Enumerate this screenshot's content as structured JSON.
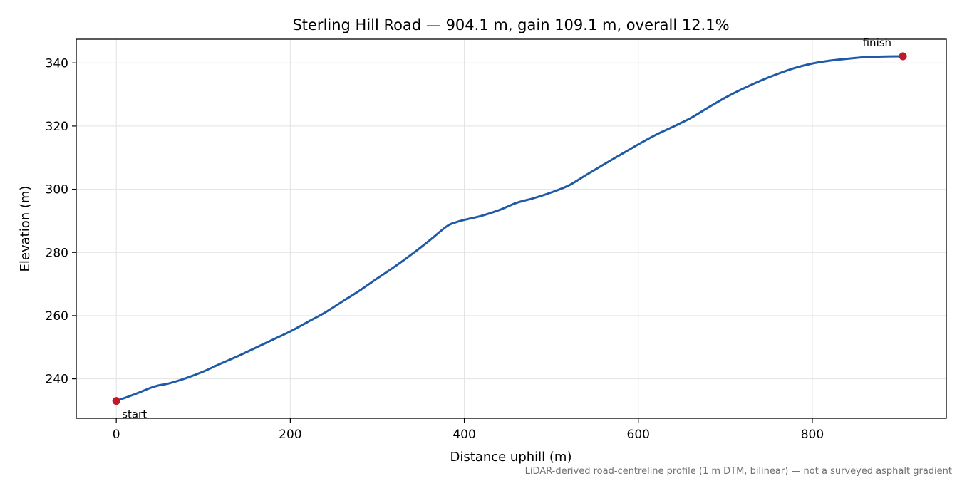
{
  "chart_data": {
    "type": "line",
    "title": "Sterling Hill Road — 904.1 m, gain 109.1 m, overall 12.1%",
    "xlabel": "Distance uphill (m)",
    "ylabel": "Elevation (m)",
    "xlim": [
      -46,
      954
    ],
    "ylim": [
      227.5,
      347.5
    ],
    "xticks": [
      0,
      200,
      400,
      600,
      800
    ],
    "yticks": [
      240,
      260,
      280,
      300,
      320,
      340
    ],
    "grid": true,
    "line_color": "#1f5aa6",
    "marker_color": "#c0192b",
    "series": [
      {
        "x": [
          0,
          20,
          40,
          50,
          60,
          80,
          100,
          120,
          140,
          160,
          180,
          200,
          220,
          240,
          260,
          280,
          300,
          320,
          340,
          360,
          380,
          390,
          400,
          420,
          440,
          460,
          480,
          500,
          520,
          540,
          560,
          580,
          600,
          620,
          640,
          660,
          680,
          700,
          720,
          740,
          760,
          780,
          800,
          820,
          840,
          860,
          880,
          904.1
        ],
        "y": [
          233.0,
          235.0,
          237.2,
          238.0,
          238.5,
          240.2,
          242.3,
          244.8,
          247.2,
          249.8,
          252.4,
          255.0,
          258.0,
          261.0,
          264.5,
          268.0,
          271.8,
          275.5,
          279.5,
          283.8,
          288.3,
          289.5,
          290.3,
          291.6,
          293.4,
          295.7,
          297.2,
          299.0,
          301.2,
          304.5,
          307.8,
          311.0,
          314.2,
          317.2,
          319.8,
          322.5,
          325.8,
          329.0,
          331.8,
          334.3,
          336.5,
          338.4,
          339.8,
          340.7,
          341.3,
          341.8,
          342.0,
          342.1
        ]
      }
    ],
    "points": [
      {
        "label": "start",
        "x": 0,
        "y": 233.0
      },
      {
        "label": "finish",
        "x": 904.1,
        "y": 342.1
      }
    ],
    "footnote": "LiDAR-derived road-centreline profile (1 m DTM, bilinear) — not a surveyed asphalt gradient"
  }
}
